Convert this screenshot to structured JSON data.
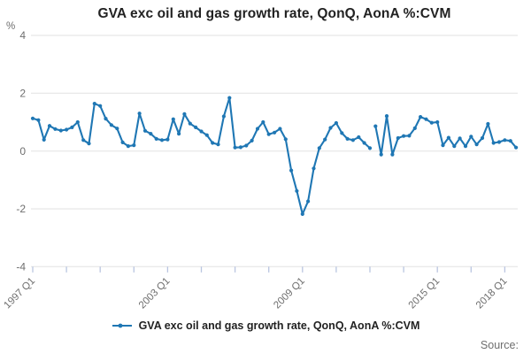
{
  "title": "GVA exc oil and gas growth rate, QonQ, AonA %:CVM",
  "y_axis": {
    "unit_label": "%",
    "ticks": [
      4,
      2,
      0,
      -2,
      -4
    ],
    "min": -4,
    "max": 4
  },
  "x_axis": {
    "tick_count": 15,
    "ticks_every": "6 quarters",
    "labels": [
      {
        "tick": 0,
        "text": "1997 Q1"
      },
      {
        "tick": 4,
        "text": "2003 Q1"
      },
      {
        "tick": 8,
        "text": "2009 Q1"
      },
      {
        "tick": 12,
        "text": "2015 Q1"
      },
      {
        "tick": 14,
        "text": "2018 Q1"
      }
    ]
  },
  "legend": {
    "label": "GVA exc oil and gas growth rate, QonQ, AonA %:CVM"
  },
  "source_label": "Source:",
  "colors": {
    "line": "#1f77b4",
    "grid": "#e2e2e2",
    "tick": "#b9c5e0",
    "axis_text": "#6e6e6e",
    "title_text": "#222222"
  },
  "chart_data": {
    "type": "line",
    "title": "GVA exc oil and gas growth rate, QonQ, AonA %:CVM",
    "xlabel": "",
    "ylabel": "%",
    "ylim": [
      -4,
      4
    ],
    "grid": "horizontal",
    "legend_position": "bottom-center",
    "x_start": "1997 Q1",
    "x_end": "2018 Q3",
    "frequency": "quarterly",
    "series": [
      {
        "name": "GVA exc oil and gas growth rate, QonQ, AonA %:CVM",
        "break_after_index": 60,
        "break_note": "line break after 2012 Q1 (no connecting segment)",
        "values": [
          1.13,
          1.07,
          0.39,
          0.87,
          0.76,
          0.71,
          0.74,
          0.82,
          1.0,
          0.38,
          0.26,
          1.64,
          1.56,
          1.12,
          0.9,
          0.78,
          0.3,
          0.17,
          0.2,
          1.3,
          0.7,
          0.6,
          0.42,
          0.38,
          0.4,
          1.1,
          0.6,
          1.28,
          0.95,
          0.82,
          0.68,
          0.55,
          0.28,
          0.23,
          1.2,
          1.84,
          0.12,
          0.13,
          0.19,
          0.36,
          0.77,
          1.0,
          0.58,
          0.64,
          0.77,
          0.41,
          -0.67,
          -1.38,
          -2.18,
          -1.74,
          -0.6,
          0.1,
          0.4,
          0.8,
          0.97,
          0.62,
          0.42,
          0.38,
          0.48,
          0.28,
          0.1,
          0.86,
          -0.12,
          1.21,
          -0.12,
          0.45,
          0.52,
          0.53,
          0.79,
          1.18,
          1.1,
          0.98,
          1.0,
          0.2,
          0.46,
          0.17,
          0.44,
          0.17,
          0.5,
          0.23,
          0.45,
          0.94,
          0.28,
          0.31,
          0.38,
          0.35,
          0.12
        ]
      }
    ]
  }
}
